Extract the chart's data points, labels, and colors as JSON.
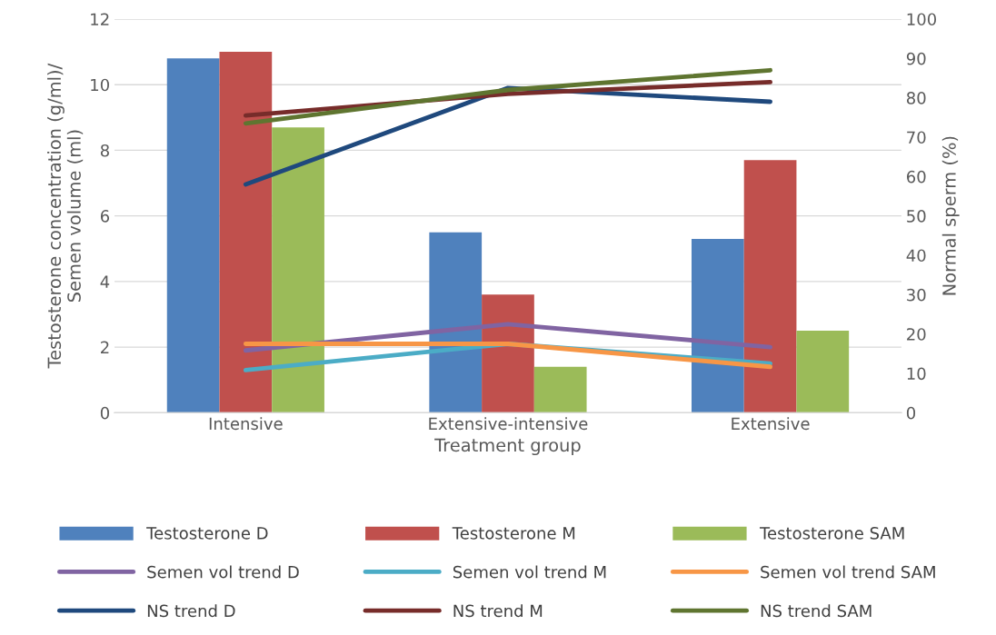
{
  "chart_data": {
    "type": "bar",
    "xlabel": "Treatment group",
    "ylabel": "Testosterone concentration (g/ml)/\nSemen volume (ml)",
    "y2label": "Normal sperm (%)",
    "categories": [
      "Intensive",
      "Extensive-intensive",
      "Extensive"
    ],
    "series": [
      {
        "name": "Testosterone D",
        "color": "#4f81bd",
        "values": [
          10.8,
          5.5,
          5.3
        ]
      },
      {
        "name": "Testosterone M",
        "color": "#c0504d",
        "values": [
          11.0,
          3.6,
          7.7
        ]
      },
      {
        "name": "Testosterone SAM",
        "color": "#9bbb59",
        "values": [
          8.7,
          1.4,
          2.5
        ]
      },
      {
        "name": "Semen vol trend D",
        "type": "line",
        "color": "#8064a2",
        "values": [
          1.9,
          2.7,
          2.0
        ]
      },
      {
        "name": "Semen vol trend M",
        "type": "line",
        "color": "#4bacc6",
        "values": [
          1.3,
          2.1,
          1.5
        ]
      },
      {
        "name": "Semen vol trend SAM",
        "type": "line",
        "color": "#f79646",
        "values": [
          2.1,
          2.1,
          1.4
        ]
      },
      {
        "name": "NS trend D",
        "type": "line",
        "axis": "y2",
        "color": "#1f497d",
        "values": [
          58,
          82.5,
          79
        ]
      },
      {
        "name": "NS trend M",
        "type": "line",
        "axis": "y2",
        "color": "#772c2a",
        "values": [
          75.5,
          81,
          84
        ]
      },
      {
        "name": "NS trend SAM",
        "type": "line",
        "axis": "y2",
        "color": "#5f7530",
        "values": [
          73.5,
          82,
          87
        ]
      }
    ],
    "ylim": [
      0,
      12
    ],
    "yticks": [
      0,
      2,
      4,
      6,
      8,
      10,
      12
    ],
    "y2lim": [
      0,
      100
    ],
    "y2ticks": [
      0,
      10,
      20,
      30,
      40,
      50,
      60,
      70,
      80,
      90,
      100
    ],
    "grid": "y",
    "legend": "bottom",
    "marker": "none",
    "line_style": "solid"
  }
}
